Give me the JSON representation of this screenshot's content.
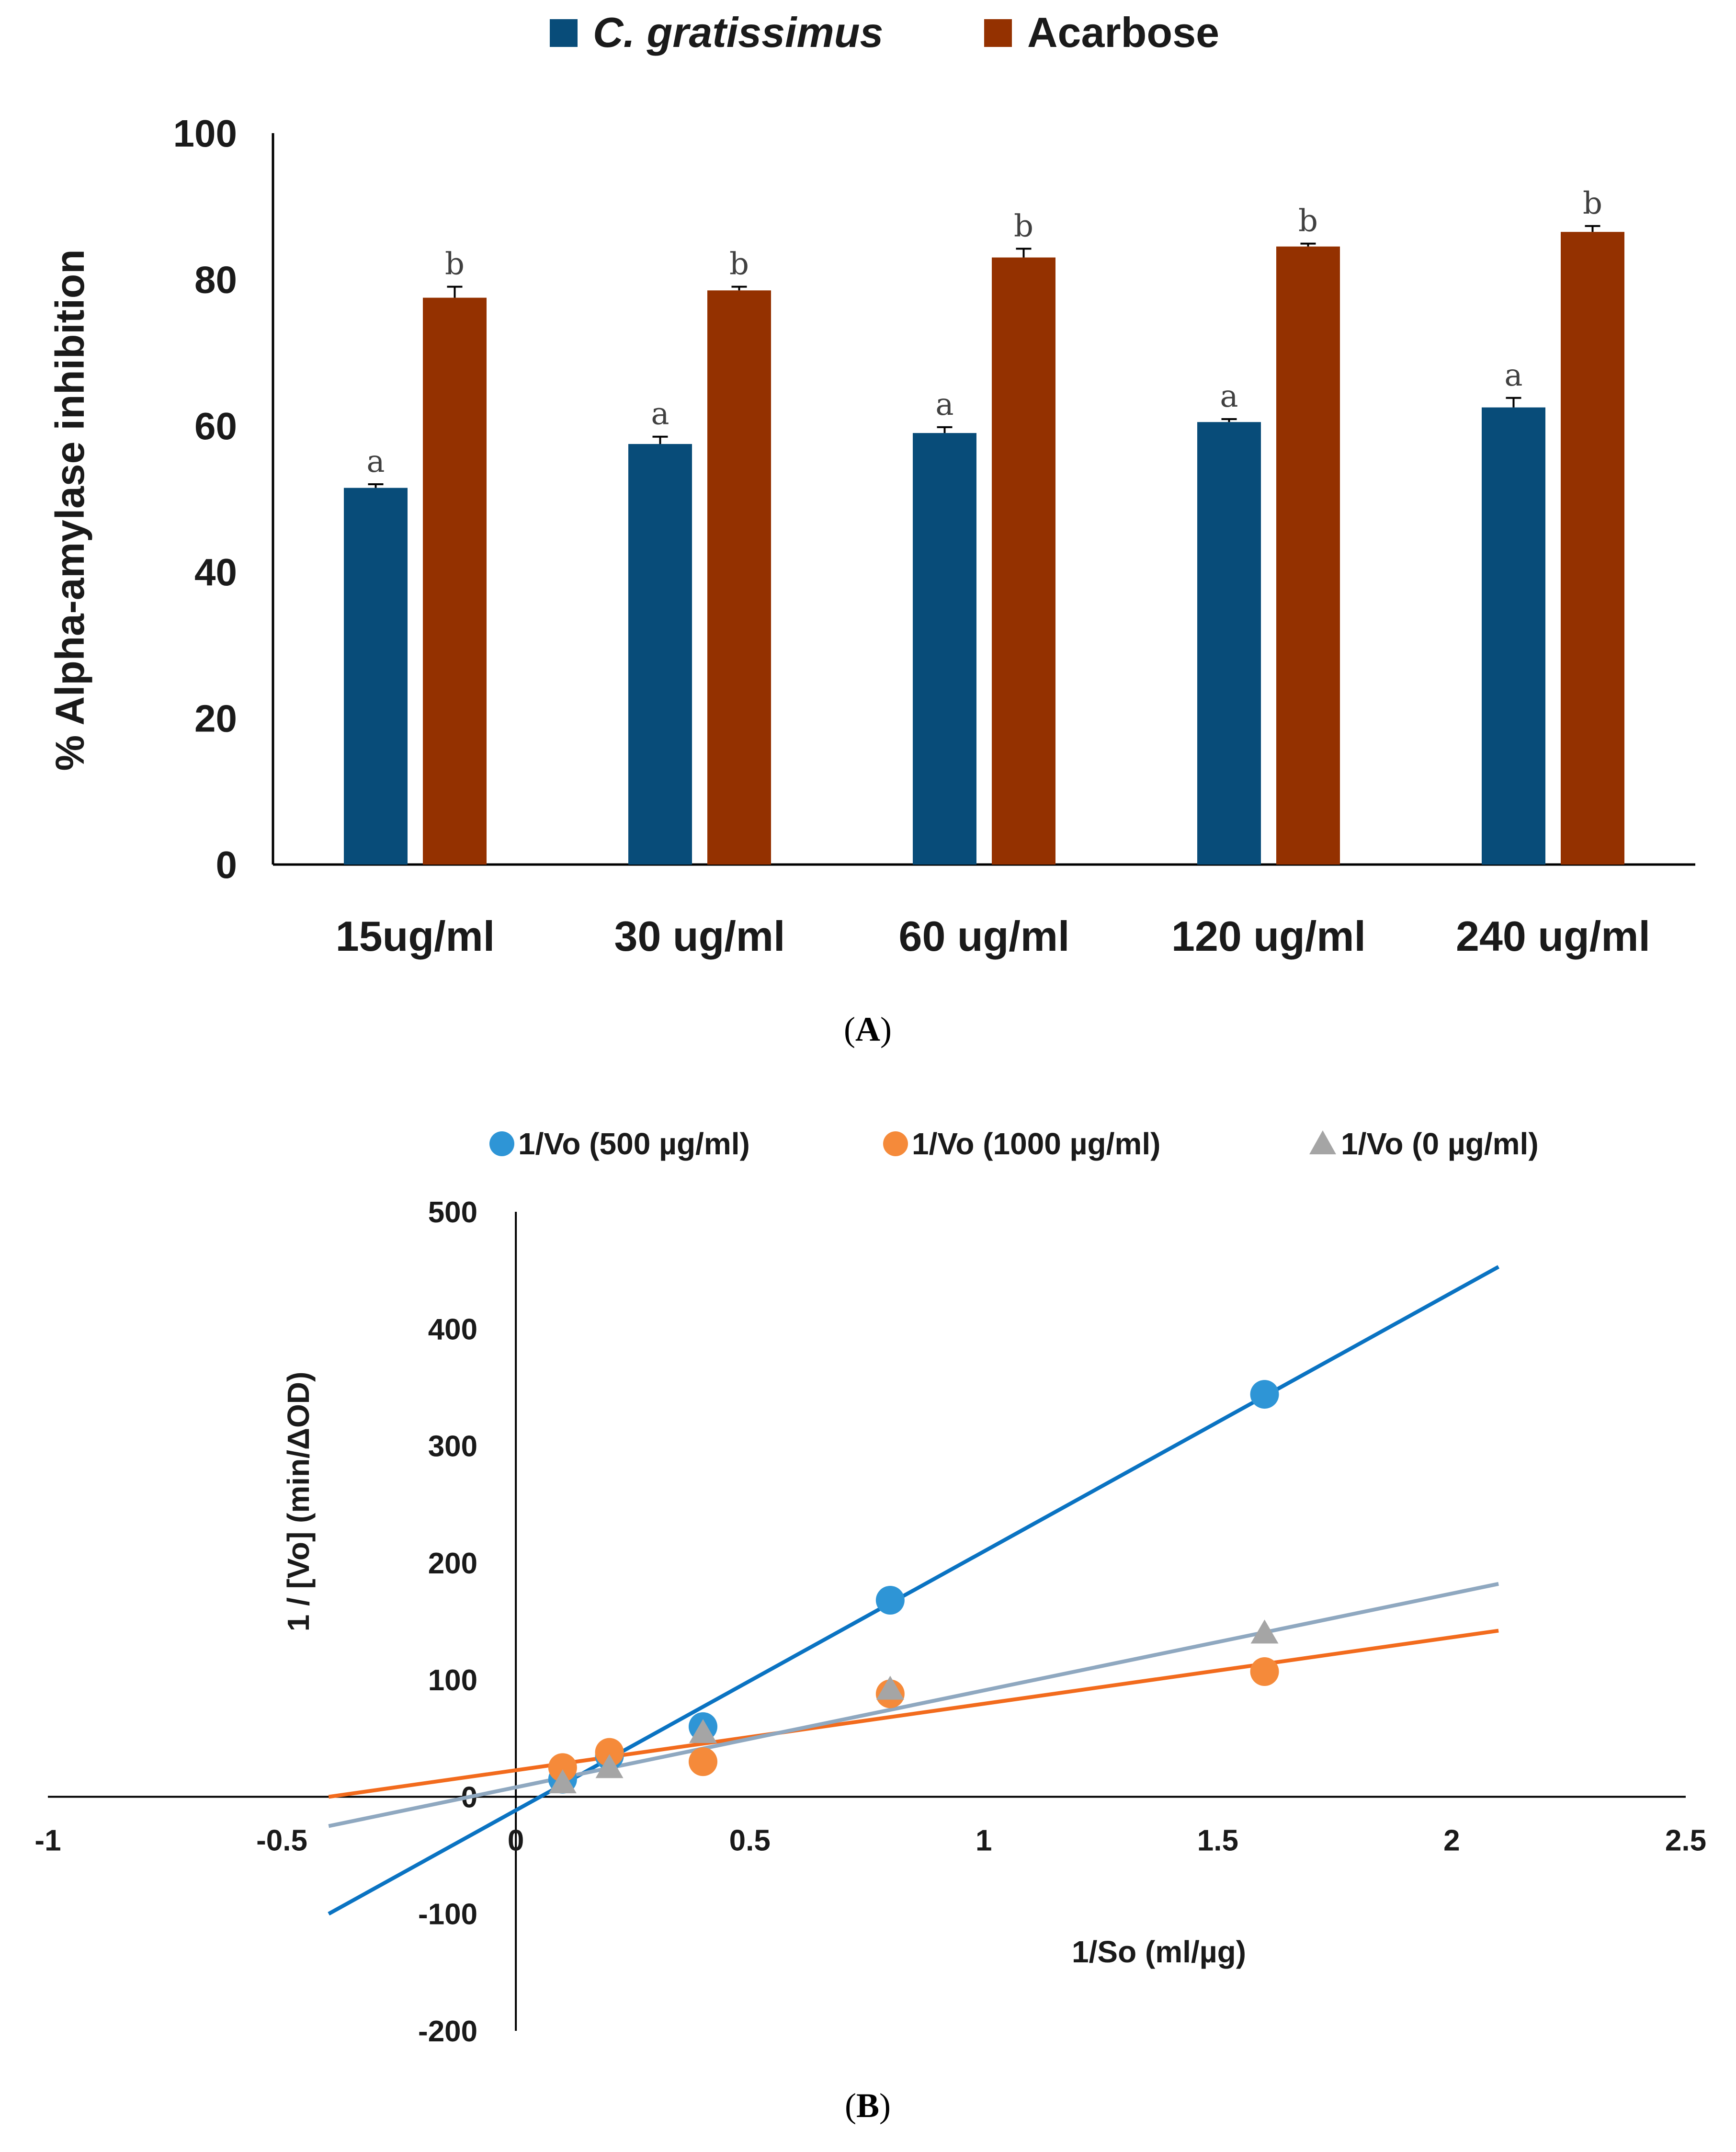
{
  "chart_data": [
    {
      "type": "bar",
      "panel_label": "A",
      "title": "",
      "ylabel": "% Alpha-amylase inhibition",
      "xlabel": "",
      "ylim": [
        0,
        100
      ],
      "yticks": [
        0,
        20,
        40,
        60,
        80,
        100
      ],
      "categories": [
        "15ug/ml",
        "30 ug/ml",
        "60 ug/ml",
        "120 ug/ml",
        "240 ug/ml"
      ],
      "legend_position": "top",
      "series": [
        {
          "name": "C. gratissimus",
          "color": "#084C79",
          "values": [
            51.5,
            57.5,
            59,
            60.5,
            62.5
          ],
          "errors": [
            0.5,
            1,
            0.8,
            0.4,
            1.3
          ],
          "letters": [
            "a",
            "a",
            "a",
            "a",
            "a"
          ]
        },
        {
          "name": "Acarbose",
          "color": "#943100",
          "values": [
            77.5,
            78.5,
            83,
            84.5,
            86.5
          ],
          "errors": [
            1.5,
            0.5,
            1.2,
            0.4,
            0.8
          ],
          "letters": [
            "b",
            "b",
            "b",
            "b",
            "b"
          ]
        }
      ]
    },
    {
      "type": "scatter",
      "panel_label": "B",
      "title": "",
      "xlabel": "1/So (ml/µg)",
      "ylabel": "1 / [Vo] (min/ΔOD)",
      "xlim": [
        -1,
        2.5
      ],
      "ylim": [
        -200,
        500
      ],
      "xticks": [
        -1,
        -0.5,
        0,
        0.5,
        1,
        1.5,
        2,
        2.5
      ],
      "yticks": [
        -200,
        -100,
        0,
        100,
        200,
        300,
        400,
        500
      ],
      "legend_position": "top",
      "series": [
        {
          "name": "1/Vo (500 µg/ml)",
          "color": "#2E95D6",
          "line_color": "#0A73C2",
          "marker": "circle",
          "x": [
            0.1,
            0.2,
            0.4,
            0.8,
            1.6
          ],
          "y": [
            15,
            35,
            60,
            168,
            344
          ],
          "trendline": {
            "x": [
              -0.4,
              2.1
            ],
            "y": [
              -100,
              453
            ]
          }
        },
        {
          "name": "1/Vo (1000 µg/ml)",
          "color": "#F58A3A",
          "line_color": "#F26B1D",
          "marker": "circle",
          "x": [
            0.1,
            0.2,
            0.4,
            0.8,
            1.6
          ],
          "y": [
            25,
            38,
            30,
            88,
            107
          ],
          "trendline": {
            "x": [
              -0.4,
              2.1
            ],
            "y": [
              0,
              142
            ]
          }
        },
        {
          "name": "1/Vo (0 µg/ml)",
          "color": "#A5A5A5",
          "line_color": "#8FA8C0",
          "marker": "triangle",
          "x": [
            0.1,
            0.2,
            0.4,
            0.8,
            1.6
          ],
          "y": [
            12,
            25,
            55,
            92,
            140
          ],
          "trendline": {
            "x": [
              -0.4,
              2.1
            ],
            "y": [
              -25,
              182
            ]
          }
        }
      ]
    }
  ]
}
